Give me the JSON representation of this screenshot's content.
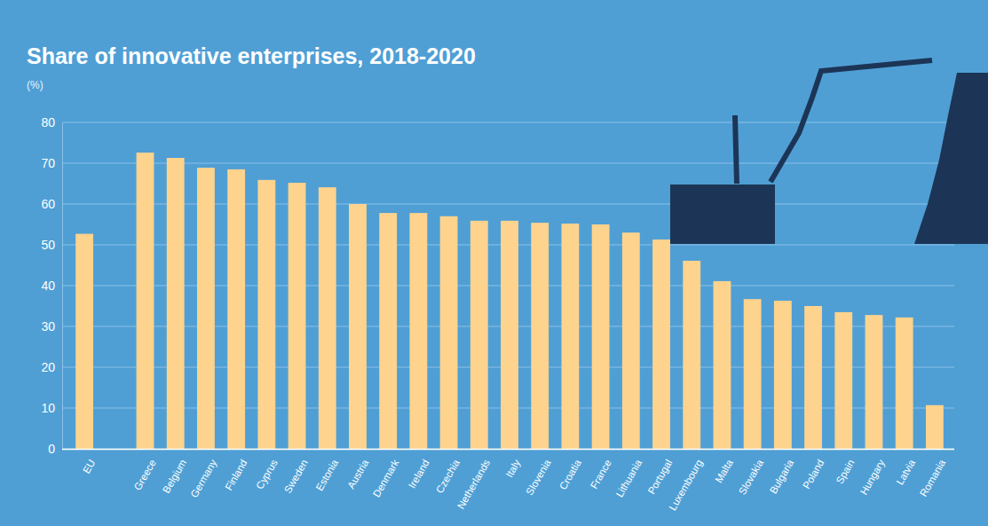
{
  "chart_data": {
    "type": "bar",
    "title": "Share of innovative enterprises, 2018-2020",
    "subtitle": "(%)",
    "categories": [
      "EU",
      "Greece",
      "Belgium",
      "Germany",
      "Finland",
      "Cyprus",
      "Sweden",
      "Estonia",
      "Austria",
      "Denmark",
      "Ireland",
      "Czechia",
      "Netherlands",
      "Italy",
      "Slovenia",
      "Croatia",
      "France",
      "Lithuania",
      "Portugal",
      "Luxembourg",
      "Malta",
      "Slovakia",
      "Bulgaria",
      "Poland",
      "Spain",
      "Hungary",
      "Latvia",
      "Romania"
    ],
    "values": [
      52.7,
      72.6,
      71.3,
      68.9,
      68.5,
      65.9,
      65.2,
      64.1,
      60.0,
      57.8,
      57.8,
      57.0,
      55.9,
      55.9,
      55.4,
      55.2,
      55.0,
      53.0,
      51.3,
      46.1,
      41.1,
      36.7,
      36.3,
      35.0,
      33.5,
      32.8,
      32.2,
      10.7
    ],
    "color": "#fdd38d",
    "ylim": [
      0,
      80
    ],
    "yticks": [
      0,
      10,
      20,
      30,
      40,
      50,
      60,
      70,
      80
    ],
    "grid": true
  }
}
